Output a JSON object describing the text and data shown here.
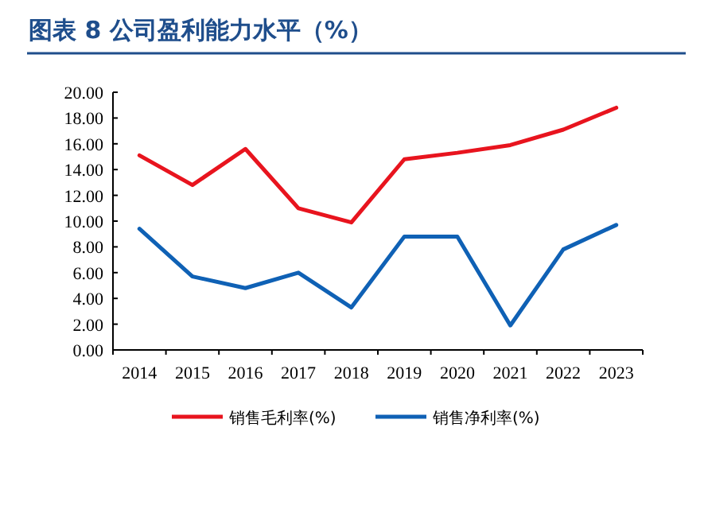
{
  "chart_data": {
    "type": "line",
    "title": "图表 8   公司盈利能力水平（%）",
    "categories": [
      "2014",
      "2015",
      "2016",
      "2017",
      "2018",
      "2019",
      "2020",
      "2021",
      "2022",
      "2023"
    ],
    "series": [
      {
        "name": "销售毛利率(%)",
        "color": "#e8141e",
        "values": [
          15.1,
          12.8,
          15.6,
          11.0,
          9.9,
          14.8,
          15.3,
          15.9,
          17.1,
          18.8
        ]
      },
      {
        "name": "销售净利率(%)",
        "color": "#0f61b5",
        "values": [
          9.4,
          5.7,
          4.8,
          6.0,
          3.3,
          8.8,
          8.8,
          1.9,
          7.8,
          9.7
        ]
      }
    ],
    "ylim": [
      0,
      20
    ],
    "yticks": [
      {
        "value": 0,
        "label": "0.00"
      },
      {
        "value": 2,
        "label": "2.00"
      },
      {
        "value": 4,
        "label": "4.00"
      },
      {
        "value": 6,
        "label": "6.00"
      },
      {
        "value": 8,
        "label": "8.00"
      },
      {
        "value": 10,
        "label": "10.00"
      },
      {
        "value": 12,
        "label": "12.00"
      },
      {
        "value": 14,
        "label": "14.00"
      },
      {
        "value": 16,
        "label": "16.00"
      },
      {
        "value": 18,
        "label": "18.00"
      },
      {
        "value": 20,
        "label": "20.00"
      }
    ],
    "grid": false,
    "legend": "bottom",
    "marker": "none",
    "line_style": "solid"
  }
}
